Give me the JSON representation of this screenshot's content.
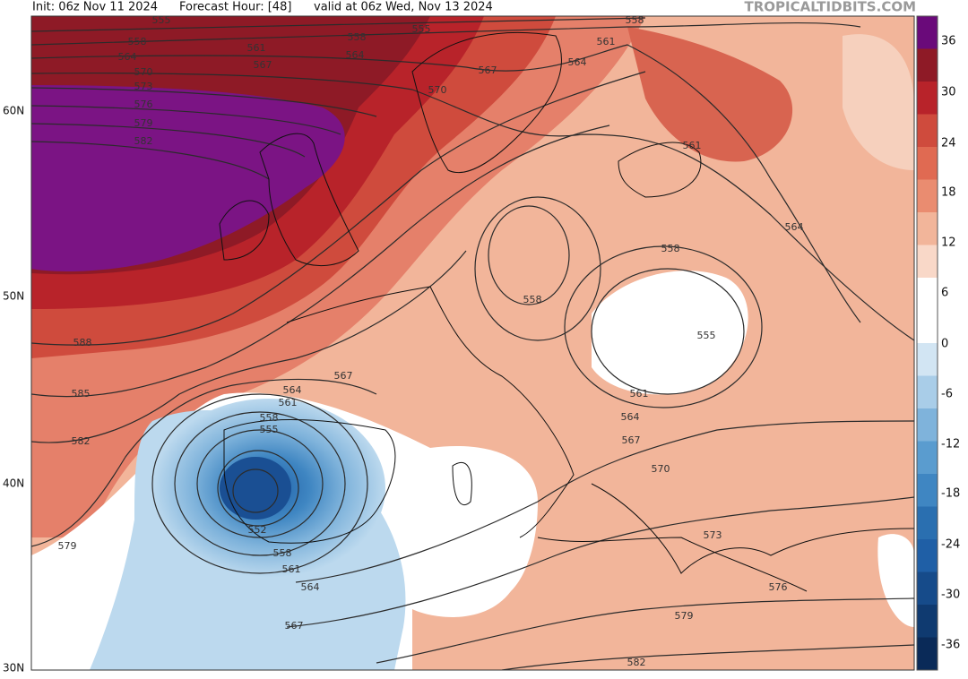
{
  "header": {
    "init": "Init: 06z Nov 11 2024",
    "forecast": "Forecast Hour: [48]",
    "valid": "valid at 06z Wed, Nov 13 2024",
    "watermark": "TROPICALTIDBITS.COM"
  },
  "latitude_labels": [
    "60N",
    "50N",
    "40N",
    "30N"
  ],
  "colorbar_labels": [
    "36",
    "30",
    "24",
    "18",
    "12",
    "6",
    "0",
    "-6",
    "-12",
    "-18",
    "-24",
    "-30",
    "-36"
  ],
  "contour_labels": [
    "555",
    "558",
    "564",
    "570",
    "573",
    "576",
    "579",
    "582",
    "561",
    "567",
    "558",
    "564",
    "555",
    "570",
    "567",
    "561",
    "564",
    "558",
    "561",
    "564",
    "558",
    "558",
    "555",
    "561",
    "564",
    "567",
    "570",
    "573",
    "576",
    "579",
    "582",
    "588",
    "585",
    "582",
    "579",
    "567",
    "564",
    "561",
    "558",
    "555",
    "552",
    "558",
    "561",
    "564",
    "567"
  ]
}
